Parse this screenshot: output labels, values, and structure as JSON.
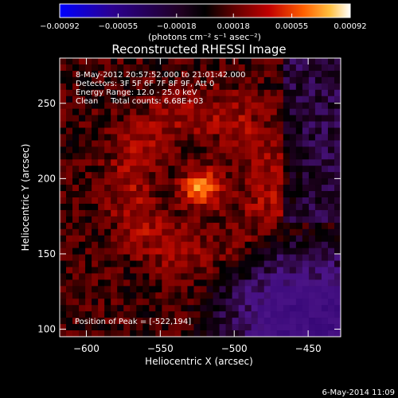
{
  "chart_data": {
    "type": "heatmap",
    "title": "Reconstructed RHESSI Image",
    "xlabel": "Heliocentric X (arcsec)",
    "ylabel": "Heliocentric Y (arcsec)",
    "xlim": [
      -618,
      -428
    ],
    "ylim": [
      95,
      280
    ],
    "x_ticks": [
      -600,
      -550,
      -500,
      -450
    ],
    "y_ticks": [
      100,
      150,
      200,
      250
    ],
    "x_tick_labels": [
      "−600",
      "−550",
      "−500",
      "−450"
    ],
    "y_tick_labels": [
      "100",
      "150",
      "200",
      "250"
    ],
    "colorbar": {
      "range": [
        -0.00092,
        0.00092
      ],
      "ticks": [
        -0.00092,
        -0.00055,
        -0.00018,
        0.00018,
        0.00055,
        0.00092
      ],
      "tick_labels": [
        "−0.00092",
        "−0.00055",
        "−0.00018",
        "0.00018",
        "0.00055",
        "0.00092"
      ],
      "unit_text": "(photons cm⁻² s⁻¹ asec⁻²)",
      "colors": [
        "#0000ff",
        "#2b007a",
        "#4b1588",
        "#000000",
        "#4a0000",
        "#a00000",
        "#e01a00",
        "#ff7000",
        "#ffc040",
        "#ffffff"
      ]
    },
    "info_lines": [
      "8-May-2012 20:57:52.000 to 21:01:42.000",
      "Detectors: 3F 5F 6F 7F 8F 9F, Att 0",
      "Energy Range: 12.0 - 25.0 keV",
      "Clean     Total counts: 6.68E+03"
    ],
    "peak_label": "Position of Peak = [-522,194]",
    "peak": {
      "x": -522,
      "y": 194
    },
    "grid": false
  },
  "footer": {
    "date": "6-May-2014 11:09"
  }
}
